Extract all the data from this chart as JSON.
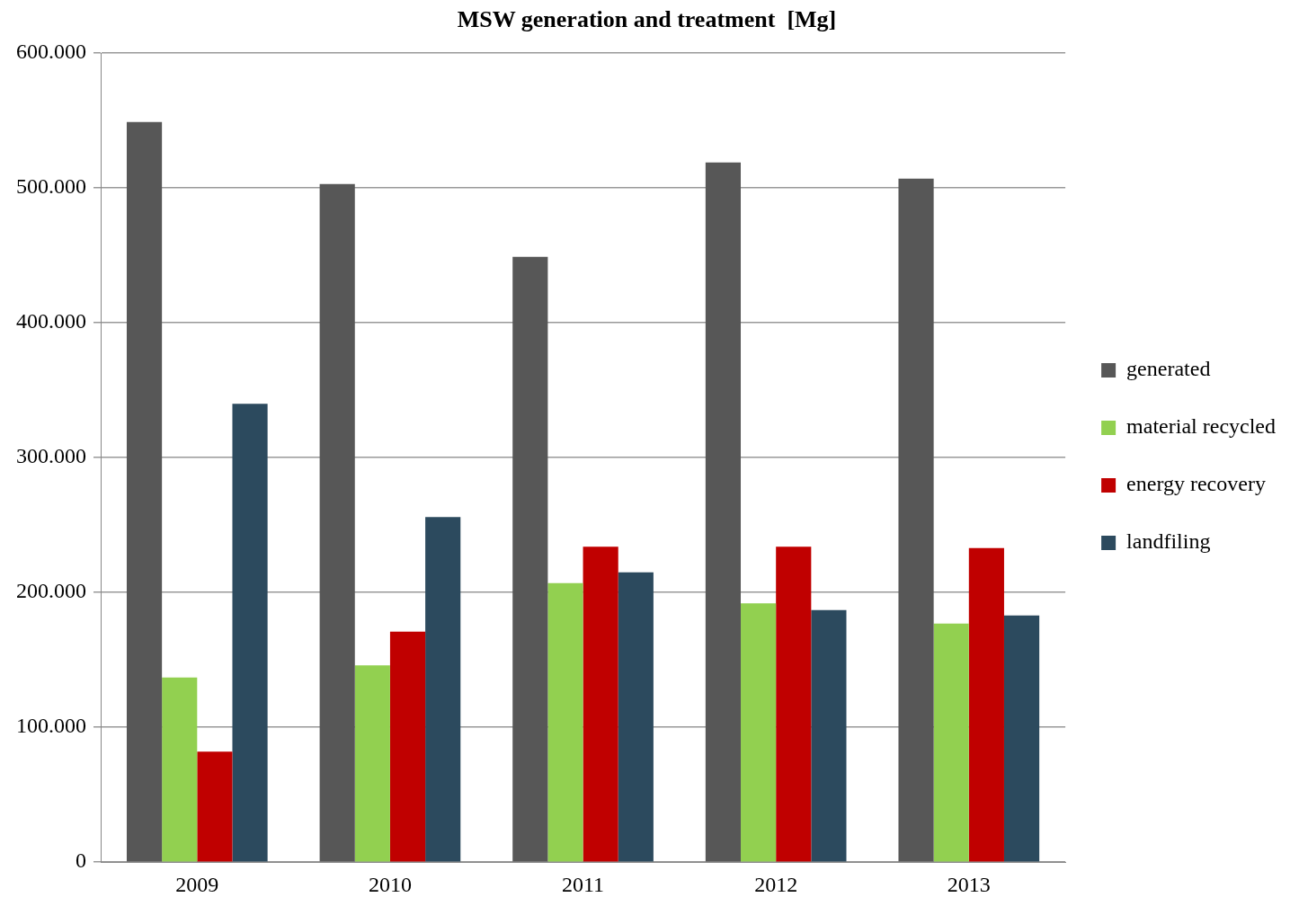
{
  "chart_data": {
    "type": "bar",
    "title": "MSW generation and treatment  [Mg]",
    "categories": [
      "2009",
      "2010",
      "2011",
      "2012",
      "2013"
    ],
    "series": [
      {
        "name": "generated",
        "color": "#575757",
        "values": [
          549000,
          503000,
          449000,
          519000,
          507000
        ]
      },
      {
        "name": "material recycled",
        "color": "#92d050",
        "values": [
          137000,
          146000,
          207000,
          192000,
          177000
        ]
      },
      {
        "name": "energy recovery",
        "color": "#c00000",
        "values": [
          82000,
          171000,
          234000,
          234000,
          233000
        ]
      },
      {
        "name": "landfiling",
        "color": "#2c4a5e",
        "values": [
          340000,
          256000,
          215000,
          187000,
          183000
        ]
      }
    ],
    "ylim": [
      0,
      600000
    ],
    "yticks": [
      {
        "value": 0,
        "label": "0"
      },
      {
        "value": 100000,
        "label": "100.000"
      },
      {
        "value": 200000,
        "label": "200.000"
      },
      {
        "value": 300000,
        "label": "300.000"
      },
      {
        "value": 400000,
        "label": "400.000"
      },
      {
        "value": 500000,
        "label": "500.000"
      },
      {
        "value": 600000,
        "label": "600.000"
      }
    ],
    "grid": "y",
    "legend": "right"
  }
}
